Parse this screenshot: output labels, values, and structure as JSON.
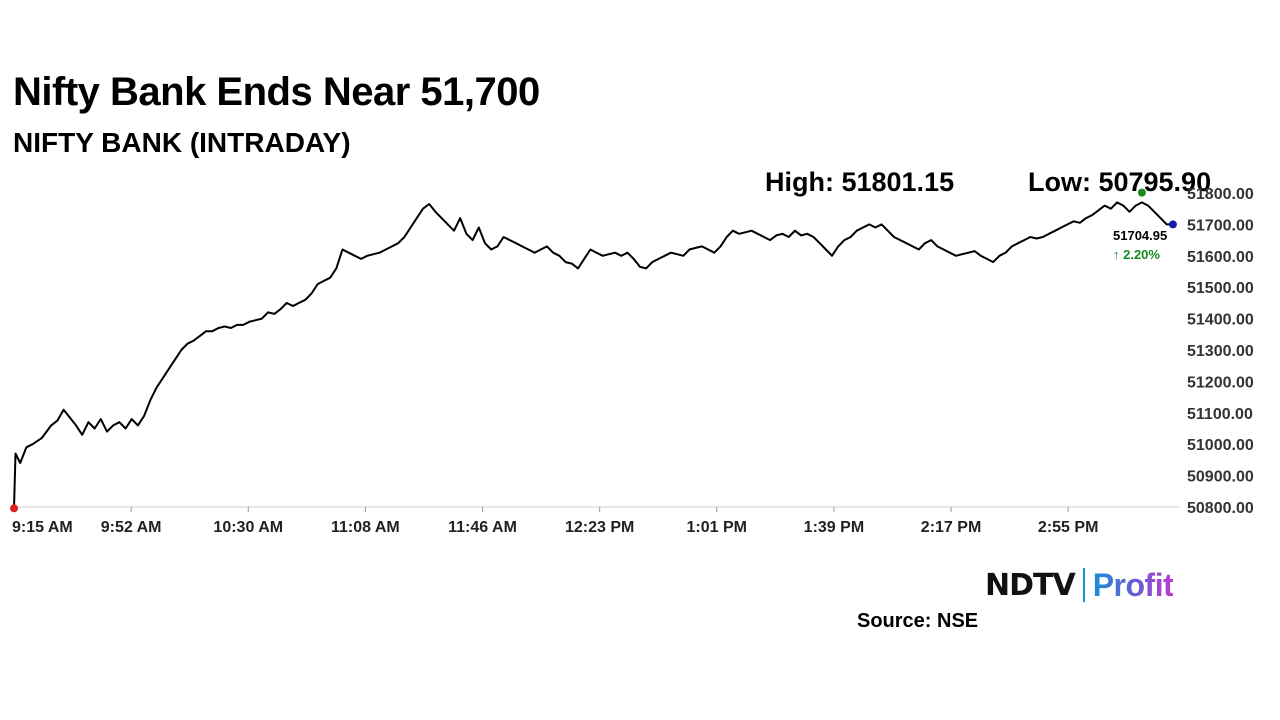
{
  "header": {
    "title": "Nifty Bank Ends Near 51,700",
    "subtitle": "NIFTY BANK (INTRADAY)"
  },
  "stats": {
    "high_label": "High: 51801.15",
    "low_label": "Low: 50795.90"
  },
  "footer": {
    "logo_primary": "NDTV",
    "logo_secondary": "Profit",
    "source": "Source: NSE"
  },
  "chart_data": {
    "type": "line",
    "title": "Nifty Bank Ends Near 51,700",
    "subtitle": "NIFTY BANK (INTRADAY)",
    "xlabel": "",
    "ylabel": "",
    "x_ticks": [
      "9:15 AM",
      "9:52 AM",
      "10:30 AM",
      "11:08 AM",
      "11:46 AM",
      "12:23 PM",
      "1:01 PM",
      "1:39 PM",
      "2:17 PM",
      "2:55 PM"
    ],
    "y_ticks": [
      "50800.00",
      "50900.00",
      "51000.00",
      "51100.00",
      "51200.00",
      "51300.00",
      "51400.00",
      "51500.00",
      "51600.00",
      "51700.00",
      "51800.00"
    ],
    "ylim": [
      50800,
      51800
    ],
    "x_unit": "minutes since market open (9:15 AM)",
    "xlim": [
      0,
      375
    ],
    "grid": false,
    "line_color": "#000000",
    "high": 51801.15,
    "low": 50795.9,
    "last_value_label": "51704.95",
    "change_label": "↑ 2.20%",
    "marker_colors": {
      "low": "#e0201c",
      "high": "#1a8a1a",
      "last": "#1a1ab0"
    },
    "points": [
      [
        0,
        50795.9
      ],
      [
        0.5,
        50970
      ],
      [
        2,
        50940
      ],
      [
        4,
        50990
      ],
      [
        6,
        51000
      ],
      [
        9,
        51020
      ],
      [
        12,
        51060
      ],
      [
        14,
        51075
      ],
      [
        16,
        51110
      ],
      [
        18,
        51085
      ],
      [
        20,
        51060
      ],
      [
        22,
        51030
      ],
      [
        24,
        51070
      ],
      [
        26,
        51050
      ],
      [
        28,
        51080
      ],
      [
        30,
        51040
      ],
      [
        32,
        51060
      ],
      [
        34,
        51070
      ],
      [
        36,
        51050
      ],
      [
        38,
        51080
      ],
      [
        40,
        51060
      ],
      [
        42,
        51090
      ],
      [
        44,
        51140
      ],
      [
        46,
        51180
      ],
      [
        48,
        51210
      ],
      [
        50,
        51240
      ],
      [
        52,
        51270
      ],
      [
        54,
        51300
      ],
      [
        56,
        51320
      ],
      [
        58,
        51330
      ],
      [
        60,
        51345
      ],
      [
        62,
        51360
      ],
      [
        64,
        51360
      ],
      [
        66,
        51370
      ],
      [
        68,
        51375
      ],
      [
        70,
        51370
      ],
      [
        72,
        51380
      ],
      [
        74,
        51380
      ],
      [
        76,
        51390
      ],
      [
        78,
        51395
      ],
      [
        80,
        51400
      ],
      [
        82,
        51420
      ],
      [
        84,
        51415
      ],
      [
        86,
        51430
      ],
      [
        88,
        51450
      ],
      [
        90,
        51440
      ],
      [
        92,
        51450
      ],
      [
        94,
        51460
      ],
      [
        96,
        51480
      ],
      [
        98,
        51510
      ],
      [
        100,
        51520
      ],
      [
        102,
        51530
      ],
      [
        104,
        51560
      ],
      [
        106,
        51620
      ],
      [
        108,
        51610
      ],
      [
        110,
        51600
      ],
      [
        112,
        51590
      ],
      [
        114,
        51600
      ],
      [
        116,
        51605
      ],
      [
        118,
        51610
      ],
      [
        120,
        51620
      ],
      [
        122,
        51630
      ],
      [
        124,
        51640
      ],
      [
        126,
        51660
      ],
      [
        128,
        51690
      ],
      [
        130,
        51720
      ],
      [
        132,
        51750
      ],
      [
        134,
        51765
      ],
      [
        136,
        51740
      ],
      [
        138,
        51720
      ],
      [
        140,
        51700
      ],
      [
        142,
        51680
      ],
      [
        144,
        51720
      ],
      [
        146,
        51670
      ],
      [
        148,
        51650
      ],
      [
        150,
        51690
      ],
      [
        152,
        51640
      ],
      [
        154,
        51620
      ],
      [
        156,
        51630
      ],
      [
        158,
        51660
      ],
      [
        160,
        51650
      ],
      [
        162,
        51640
      ],
      [
        164,
        51630
      ],
      [
        166,
        51620
      ],
      [
        168,
        51610
      ],
      [
        170,
        51620
      ],
      [
        172,
        51630
      ],
      [
        174,
        51610
      ],
      [
        176,
        51600
      ],
      [
        178,
        51580
      ],
      [
        180,
        51575
      ],
      [
        182,
        51560
      ],
      [
        184,
        51590
      ],
      [
        186,
        51620
      ],
      [
        188,
        51610
      ],
      [
        190,
        51600
      ],
      [
        192,
        51605
      ],
      [
        194,
        51610
      ],
      [
        196,
        51600
      ],
      [
        198,
        51610
      ],
      [
        200,
        51590
      ],
      [
        202,
        51565
      ],
      [
        204,
        51560
      ],
      [
        206,
        51580
      ],
      [
        208,
        51590
      ],
      [
        210,
        51600
      ],
      [
        212,
        51610
      ],
      [
        214,
        51605
      ],
      [
        216,
        51600
      ],
      [
        218,
        51620
      ],
      [
        220,
        51625
      ],
      [
        222,
        51630
      ],
      [
        224,
        51620
      ],
      [
        226,
        51610
      ],
      [
        228,
        51630
      ],
      [
        230,
        51660
      ],
      [
        232,
        51680
      ],
      [
        234,
        51670
      ],
      [
        236,
        51675
      ],
      [
        238,
        51680
      ],
      [
        240,
        51670
      ],
      [
        242,
        51660
      ],
      [
        244,
        51650
      ],
      [
        246,
        51665
      ],
      [
        248,
        51670
      ],
      [
        250,
        51660
      ],
      [
        252,
        51680
      ],
      [
        254,
        51665
      ],
      [
        256,
        51670
      ],
      [
        258,
        51660
      ],
      [
        260,
        51640
      ],
      [
        262,
        51620
      ],
      [
        264,
        51600
      ],
      [
        266,
        51630
      ],
      [
        268,
        51650
      ],
      [
        270,
        51660
      ],
      [
        272,
        51680
      ],
      [
        274,
        51690
      ],
      [
        276,
        51700
      ],
      [
        278,
        51690
      ],
      [
        280,
        51700
      ],
      [
        282,
        51680
      ],
      [
        284,
        51660
      ],
      [
        286,
        51650
      ],
      [
        288,
        51640
      ],
      [
        290,
        51630
      ],
      [
        292,
        51620
      ],
      [
        294,
        51640
      ],
      [
        296,
        51650
      ],
      [
        298,
        51630
      ],
      [
        300,
        51620
      ],
      [
        302,
        51610
      ],
      [
        304,
        51600
      ],
      [
        306,
        51605
      ],
      [
        308,
        51610
      ],
      [
        310,
        51615
      ],
      [
        312,
        51600
      ],
      [
        314,
        51590
      ],
      [
        316,
        51580
      ],
      [
        318,
        51600
      ],
      [
        320,
        51610
      ],
      [
        322,
        51630
      ],
      [
        324,
        51640
      ],
      [
        326,
        51650
      ],
      [
        328,
        51660
      ],
      [
        330,
        51655
      ],
      [
        332,
        51660
      ],
      [
        334,
        51670
      ],
      [
        336,
        51680
      ],
      [
        338,
        51690
      ],
      [
        340,
        51700
      ],
      [
        342,
        51710
      ],
      [
        344,
        51705
      ],
      [
        346,
        51720
      ],
      [
        348,
        51730
      ],
      [
        350,
        51745
      ],
      [
        352,
        51760
      ],
      [
        354,
        51750
      ],
      [
        356,
        51770
      ],
      [
        358,
        51760
      ],
      [
        360,
        51740
      ],
      [
        362,
        51760
      ],
      [
        364,
        51770
      ],
      [
        366,
        51760
      ],
      [
        368,
        51740
      ],
      [
        370,
        51720
      ],
      [
        372,
        51700
      ],
      [
        374,
        51700
      ]
    ]
  }
}
